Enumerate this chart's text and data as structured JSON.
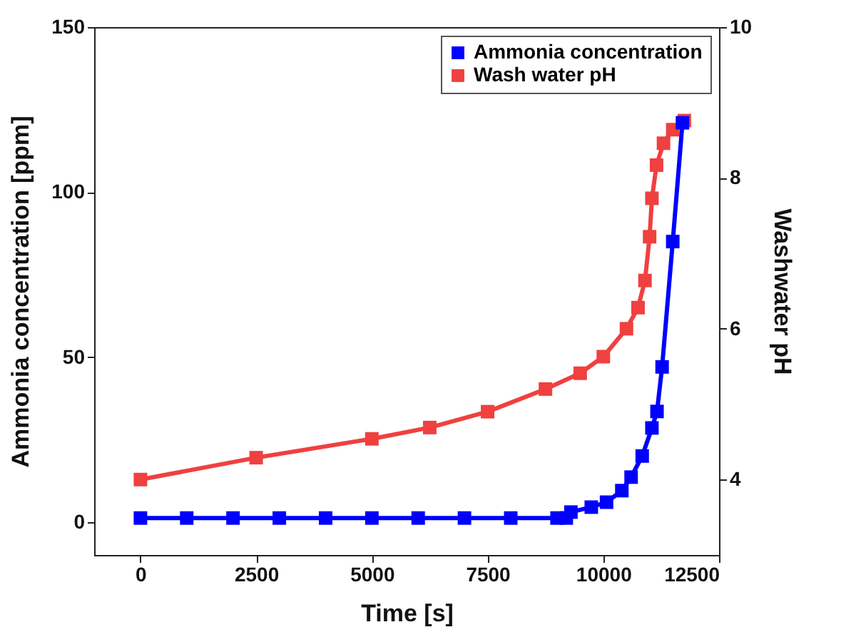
{
  "chart_data": {
    "type": "line",
    "xlabel": "Time [s]",
    "ylabel": "Ammonia concentration [ppm]",
    "y2label": "Washwater pH",
    "xlim": [
      -1000,
      12500
    ],
    "xticks": [
      0,
      2500,
      5000,
      7500,
      10000,
      12500
    ],
    "ylim": [
      -10,
      150
    ],
    "yticks": [
      0,
      50,
      100,
      150
    ],
    "y2lim": [
      3,
      10
    ],
    "y2ticks": [
      4,
      6,
      8,
      10
    ],
    "marker": "square",
    "legend": "top right",
    "grid": false,
    "series": [
      {
        "name": "Ammonia concentration",
        "color": "#0000ff",
        "x": [
          0,
          1000,
          2000,
          3000,
          4000,
          5000,
          6000,
          7000,
          8000,
          9000,
          9200,
          9300,
          9740,
          10070,
          10400,
          10600,
          10840,
          11050,
          11160,
          11270,
          11500,
          11710
        ],
        "values": [
          1.2,
          1.2,
          1.2,
          1.2,
          1.2,
          1.2,
          1.2,
          1.2,
          1.2,
          1.2,
          1.2,
          3,
          4.5,
          6,
          9.5,
          13.6,
          20,
          28.5,
          33.5,
          47,
          85,
          121
        ]
      },
      {
        "name": "Wash water pH",
        "color": "#f04040",
        "axis": "y2",
        "x": [
          0,
          2500,
          5000,
          6250,
          7500,
          8750,
          9500,
          10000,
          10500,
          10750,
          10900,
          11000,
          11050,
          11150,
          11300,
          11500,
          11750
        ],
        "values": [
          4.0,
          4.29,
          4.54,
          4.69,
          4.9,
          5.2,
          5.41,
          5.63,
          6.0,
          6.28,
          6.64,
          7.22,
          7.73,
          8.17,
          8.46,
          8.64,
          8.76
        ]
      }
    ]
  }
}
